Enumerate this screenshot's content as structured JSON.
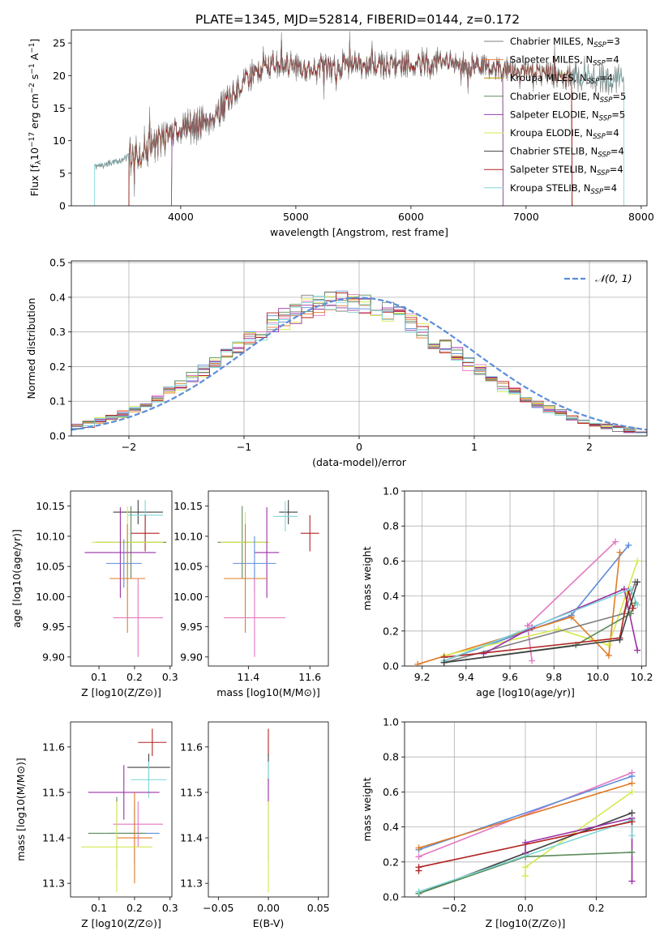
{
  "figure_title": "PLATE=1345, MJD=52814, FIBERID=0144, z=0.172",
  "colors": {
    "model": [
      "#7f7f7f",
      "#ed7d31",
      "#bc8f00",
      "#5b8c5a",
      "#9b3fb5",
      "#d9e84f",
      "#404040",
      "#b22222",
      "#7fd6d6"
    ],
    "gaussian": "#5b8dd9",
    "series": [
      "#e377c2",
      "#5b8dd9",
      "#e07b26",
      "#d6e84f",
      "#7f7f7f",
      "#9b30a6",
      "#5b8c5a",
      "#b22222",
      "#7fd6d6",
      "#404040"
    ]
  },
  "chart_data": [
    {
      "id": "spectrum",
      "type": "line",
      "xlabel": "wavelength [Angstrom, rest frame]",
      "ylabel": "Flux [f_λ 10^{-17} erg cm^{-2} s^{-1} A^{-1}]",
      "ylabel_parts": {
        "a": "Flux [f",
        "b": "λ",
        "c": "10",
        "d": "−17",
        "e": " erg cm",
        "f": "−2",
        "g": " s",
        "h": "−1",
        "i": " A",
        "j": "−1",
        "k": "]"
      },
      "xlim": [
        3050,
        8050
      ],
      "ylim": [
        0,
        27
      ],
      "xticks": [
        4000,
        5000,
        6000,
        7000,
        8000
      ],
      "yticks": [
        0,
        5,
        10,
        15,
        20,
        25
      ],
      "envelope": [
        [
          3250,
          6.0
        ],
        [
          3400,
          6.5
        ],
        [
          3550,
          7.5
        ],
        [
          3700,
          8.5
        ],
        [
          3850,
          10.5
        ],
        [
          4000,
          12.0
        ],
        [
          4150,
          12.5
        ],
        [
          4300,
          14.0
        ],
        [
          4450,
          17.0
        ],
        [
          4600,
          20.0
        ],
        [
          4750,
          21.5
        ],
        [
          4900,
          22.0
        ],
        [
          5100,
          21.0
        ],
        [
          5300,
          21.0
        ],
        [
          5500,
          22.0
        ],
        [
          5700,
          21.5
        ],
        [
          5900,
          21.8
        ],
        [
          6100,
          22.0
        ],
        [
          6300,
          22.0
        ],
        [
          6500,
          21.5
        ],
        [
          6700,
          21.3
        ],
        [
          6900,
          21.0
        ],
        [
          7100,
          20.5
        ],
        [
          7300,
          20.0
        ],
        [
          7500,
          19.5
        ],
        [
          7700,
          19.5
        ],
        [
          7850,
          19.5
        ]
      ],
      "legend": [
        {
          "name": "Chabrier MILES",
          "nssp": "3"
        },
        {
          "name": "Salpeter MILES",
          "nssp": "4"
        },
        {
          "name": "Kroupa MILES",
          "nssp": "4"
        },
        {
          "name": "Chabrier ELODIE",
          "nssp": "5"
        },
        {
          "name": "Salpeter ELODIE",
          "nssp": "5"
        },
        {
          "name": "Kroupa ELODIE",
          "nssp": "4"
        },
        {
          "name": "Chabrier STELIB",
          "nssp": "4"
        },
        {
          "name": "Salpeter STELIB",
          "nssp": "4"
        },
        {
          "name": "Kroupa STELIB",
          "nssp": "4"
        }
      ],
      "legend_placement": "upper-right",
      "nssp_prefix": "N",
      "nssp_sub": "SSP",
      "model_ranges": [
        [
          3250,
          7850
        ],
        [
          3550,
          7400
        ],
        [
          3550,
          7400
        ],
        [
          3920,
          6800
        ],
        [
          3920,
          6800
        ],
        [
          3920,
          6800
        ],
        [
          3550,
          7400
        ],
        [
          3550,
          7400
        ],
        [
          3250,
          7850
        ]
      ]
    },
    {
      "id": "residuals",
      "type": "histogram",
      "xlabel": "(data-model)/error",
      "ylabel": "Normed distribution",
      "xlim": [
        -2.5,
        2.5
      ],
      "ylim": [
        0,
        0.505
      ],
      "xticks": [
        -2,
        -1,
        0,
        1,
        2
      ],
      "yticks": [
        0.0,
        0.1,
        0.2,
        0.3,
        0.4,
        0.5
      ],
      "bin_width": 0.1,
      "grid": true,
      "legend": {
        "label": "𝒩(0, 1)",
        "placement": "upper-right"
      }
    },
    {
      "id": "age_vs_Z",
      "type": "errorbar",
      "xlabel": "Z [log10(Z/Z⊙)]",
      "ylabel": "age  [log10(age/yr)]",
      "xlim": [
        0.02,
        0.305
      ],
      "ylim": [
        9.885,
        10.175
      ],
      "xticks": [
        0.1,
        0.2,
        0.3
      ],
      "yticks": [
        9.9,
        9.95,
        10.0,
        10.05,
        10.1,
        10.15
      ],
      "points": [
        {
          "x": 0.21,
          "y": 10.14,
          "xerr": 0.07,
          "yerr": 0.02,
          "c": 9
        },
        {
          "x": 0.23,
          "y": 10.135,
          "xerr": 0.05,
          "yerr": 0.025,
          "c": 8
        },
        {
          "x": 0.23,
          "y": 10.105,
          "xerr": 0.04,
          "yerr": 0.03,
          "c": 7
        },
        {
          "x": 0.19,
          "y": 10.09,
          "xerr": 0.1,
          "yerr": 0.06,
          "c": 6
        },
        {
          "x": 0.18,
          "y": 10.09,
          "xerr": 0.1,
          "yerr": 0.06,
          "c": 3
        },
        {
          "x": 0.16,
          "y": 10.073,
          "xerr": 0.1,
          "yerr": 0.075,
          "c": 5
        },
        {
          "x": 0.17,
          "y": 10.055,
          "xerr": 0.05,
          "yerr": 0.04,
          "c": 1
        },
        {
          "x": 0.18,
          "y": 10.03,
          "xerr": 0.05,
          "yerr": 0.09,
          "c": 2
        },
        {
          "x": 0.21,
          "y": 9.965,
          "xerr": 0.07,
          "yerr": 0.065,
          "c": 0
        }
      ]
    },
    {
      "id": "age_vs_mass",
      "type": "errorbar",
      "xlabel": "mass [log10(M/M⊙)]",
      "ylabel": "",
      "xlim": [
        11.27,
        11.66
      ],
      "ylim": [
        9.885,
        10.175
      ],
      "xticks": [
        11.4,
        11.6
      ],
      "yticks": [
        9.9,
        9.95,
        10.0,
        10.05,
        10.1,
        10.15
      ],
      "points": [
        {
          "x": 11.53,
          "y": 10.14,
          "xerr": 0.03,
          "yerr": 0.02,
          "c": 9
        },
        {
          "x": 11.52,
          "y": 10.133,
          "xerr": 0.04,
          "yerr": 0.025,
          "c": 8
        },
        {
          "x": 11.6,
          "y": 10.105,
          "xerr": 0.03,
          "yerr": 0.03,
          "c": 7
        },
        {
          "x": 11.38,
          "y": 10.09,
          "xerr": 0.08,
          "yerr": 0.06,
          "c": 6
        },
        {
          "x": 11.39,
          "y": 10.09,
          "xerr": 0.08,
          "yerr": 0.05,
          "c": 3
        },
        {
          "x": 11.46,
          "y": 10.073,
          "xerr": 0.04,
          "yerr": 0.075,
          "c": 5
        },
        {
          "x": 11.42,
          "y": 10.055,
          "xerr": 0.07,
          "yerr": 0.045,
          "c": 1
        },
        {
          "x": 11.39,
          "y": 10.03,
          "xerr": 0.07,
          "yerr": 0.09,
          "c": 2
        },
        {
          "x": 11.42,
          "y": 9.965,
          "xerr": 0.1,
          "yerr": 0.065,
          "c": 0
        }
      ]
    },
    {
      "id": "massweight_vs_age",
      "type": "line",
      "xlabel": "age  [log10(age/yr)]",
      "ylabel": "mass weight",
      "xlim": [
        9.12,
        10.22
      ],
      "ylim": [
        0,
        1.0
      ],
      "xticks": [
        9.2,
        9.4,
        9.6,
        9.8,
        10.0,
        10.2
      ],
      "yticks": [
        0.0,
        0.2,
        0.4,
        0.6,
        0.8,
        1.0
      ],
      "grid": true,
      "series": [
        {
          "c": 0,
          "x": [
            9.7,
            9.68,
            10.08
          ],
          "y": [
            0.03,
            0.23,
            0.71
          ]
        },
        {
          "c": 1,
          "x": [
            9.3,
            9.88,
            10.14
          ],
          "y": [
            0.03,
            0.29,
            0.69
          ]
        },
        {
          "c": 2,
          "x": [
            9.18,
            9.88,
            10.05,
            10.1
          ],
          "y": [
            0.01,
            0.28,
            0.06,
            0.65
          ]
        },
        {
          "c": 3,
          "x": [
            9.3,
            9.82,
            10.05,
            10.18
          ],
          "y": [
            0.06,
            0.21,
            0.12,
            0.6
          ]
        },
        {
          "c": 4,
          "x": [
            9.3,
            10.12,
            10.17
          ],
          "y": [
            0.02,
            0.3,
            0.48
          ]
        },
        {
          "c": 5,
          "x": [
            9.48,
            9.7,
            10.12,
            10.18
          ],
          "y": [
            0.07,
            0.22,
            0.44,
            0.09
          ]
        },
        {
          "c": 6,
          "x": [
            9.3,
            9.9,
            10.15,
            10.17
          ],
          "y": [
            0.02,
            0.12,
            0.3,
            0.36
          ]
        },
        {
          "c": 7,
          "x": [
            9.3,
            10.1,
            10.14,
            10.16
          ],
          "y": [
            0.05,
            0.16,
            0.43,
            0.33
          ]
        },
        {
          "c": 8,
          "x": [
            9.3,
            10.15,
            10.18
          ],
          "y": [
            0.03,
            0.44,
            0.35
          ]
        },
        {
          "c": 9,
          "x": [
            9.3,
            10.1,
            10.18
          ],
          "y": [
            0.02,
            0.15,
            0.48
          ]
        }
      ]
    },
    {
      "id": "mass_vs_Z",
      "type": "errorbar",
      "xlabel": "Z [log10(Z/Z⊙)]",
      "ylabel": "mass [log10(M/M⊙)]",
      "xlim": [
        0.02,
        0.305
      ],
      "ylim": [
        11.27,
        11.655
      ],
      "xticks": [
        0.1,
        0.2,
        0.3
      ],
      "yticks": [
        11.3,
        11.4,
        11.5,
        11.6
      ],
      "points": [
        {
          "x": 0.25,
          "y": 11.61,
          "xerr": 0.04,
          "yerr": 0.03,
          "c": 7
        },
        {
          "x": 0.24,
          "y": 11.555,
          "xerr": 0.06,
          "yerr": 0.03,
          "c": 9
        },
        {
          "x": 0.24,
          "y": 11.528,
          "xerr": 0.05,
          "yerr": 0.04,
          "c": 8
        },
        {
          "x": 0.17,
          "y": 11.5,
          "xerr": 0.1,
          "yerr": 0.06,
          "c": 5
        },
        {
          "x": 0.21,
          "y": 11.43,
          "xerr": 0.07,
          "yerr": 0.05,
          "c": 0
        },
        {
          "x": 0.2,
          "y": 11.41,
          "xerr": 0.07,
          "yerr": 0.07,
          "c": 1
        },
        {
          "x": 0.15,
          "y": 11.41,
          "xerr": 0.08,
          "yerr": 0.08,
          "c": 6
        },
        {
          "x": 0.2,
          "y": 11.4,
          "xerr": 0.05,
          "yerr": 0.1,
          "c": 2
        },
        {
          "x": 0.15,
          "y": 11.38,
          "xerr": 0.1,
          "yerr": 0.1,
          "c": 3
        }
      ]
    },
    {
      "id": "mass_vs_ebv",
      "type": "errorbar",
      "xlabel": "E(B-V)",
      "ylabel": "",
      "xlim": [
        -0.06,
        0.06
      ],
      "ylim": [
        11.27,
        11.655
      ],
      "xticks": [
        -0.05,
        0.0,
        0.05
      ],
      "xtick_labels": [
        "−0.05",
        "0.00",
        "0.05"
      ],
      "yticks": [
        11.3,
        11.4,
        11.5,
        11.6
      ],
      "points": [
        {
          "x": 0,
          "y": 11.61,
          "xerr": 0,
          "yerr": 0.03,
          "c": 7
        },
        {
          "x": 0,
          "y": 11.555,
          "xerr": 0,
          "yerr": 0.03,
          "c": 9
        },
        {
          "x": 0,
          "y": 11.528,
          "xerr": 0,
          "yerr": 0.04,
          "c": 8
        },
        {
          "x": 0,
          "y": 11.5,
          "xerr": 0,
          "yerr": 0.03,
          "c": 5
        },
        {
          "x": 0,
          "y": 11.41,
          "xerr": 0,
          "yerr": 0.06,
          "c": 1
        },
        {
          "x": 0,
          "y": 11.38,
          "xerr": 0,
          "yerr": 0.1,
          "c": 3
        }
      ]
    },
    {
      "id": "massweight_vs_Z",
      "type": "line",
      "xlabel": "Z [log10(Z/Z⊙)]",
      "ylabel": "mass weight",
      "xlim": [
        -0.34,
        0.34
      ],
      "ylim": [
        0,
        1.0
      ],
      "xticks": [
        -0.2,
        0.0,
        0.2
      ],
      "xtick_labels": [
        "−0.2",
        "0.0",
        "0.2"
      ],
      "yticks": [
        0.0,
        0.2,
        0.4,
        0.6,
        0.8,
        1.0
      ],
      "grid": true,
      "series": [
        {
          "c": 0,
          "x": [
            -0.3,
            0.3
          ],
          "y": [
            0.23,
            0.71
          ]
        },
        {
          "c": 1,
          "x": [
            -0.3,
            0.3
          ],
          "y": [
            0.27,
            0.69
          ]
        },
        {
          "c": 2,
          "x": [
            -0.3,
            0.3
          ],
          "y": [
            0.28,
            0.65
          ]
        },
        {
          "c": 3,
          "x": [
            0.0,
            0.0,
            0.3
          ],
          "y": [
            0.12,
            0.17,
            0.6
          ]
        },
        {
          "c": 9,
          "x": [
            -0.3,
            0.3
          ],
          "y": [
            0.02,
            0.48
          ]
        },
        {
          "c": 5,
          "x": [
            0.0,
            0.0,
            0.3,
            0.3
          ],
          "y": [
            0.25,
            0.31,
            0.45,
            0.09
          ]
        },
        {
          "c": 6,
          "x": [
            -0.3,
            0.0,
            0.3
          ],
          "y": [
            0.02,
            0.23,
            0.255
          ]
        },
        {
          "c": 8,
          "x": [
            -0.3,
            0.3,
            0.3
          ],
          "y": [
            0.03,
            0.44,
            0.35
          ]
        },
        {
          "c": 7,
          "x": [
            -0.3,
            -0.3,
            0.3
          ],
          "y": [
            0.15,
            0.17,
            0.43
          ]
        }
      ]
    }
  ]
}
